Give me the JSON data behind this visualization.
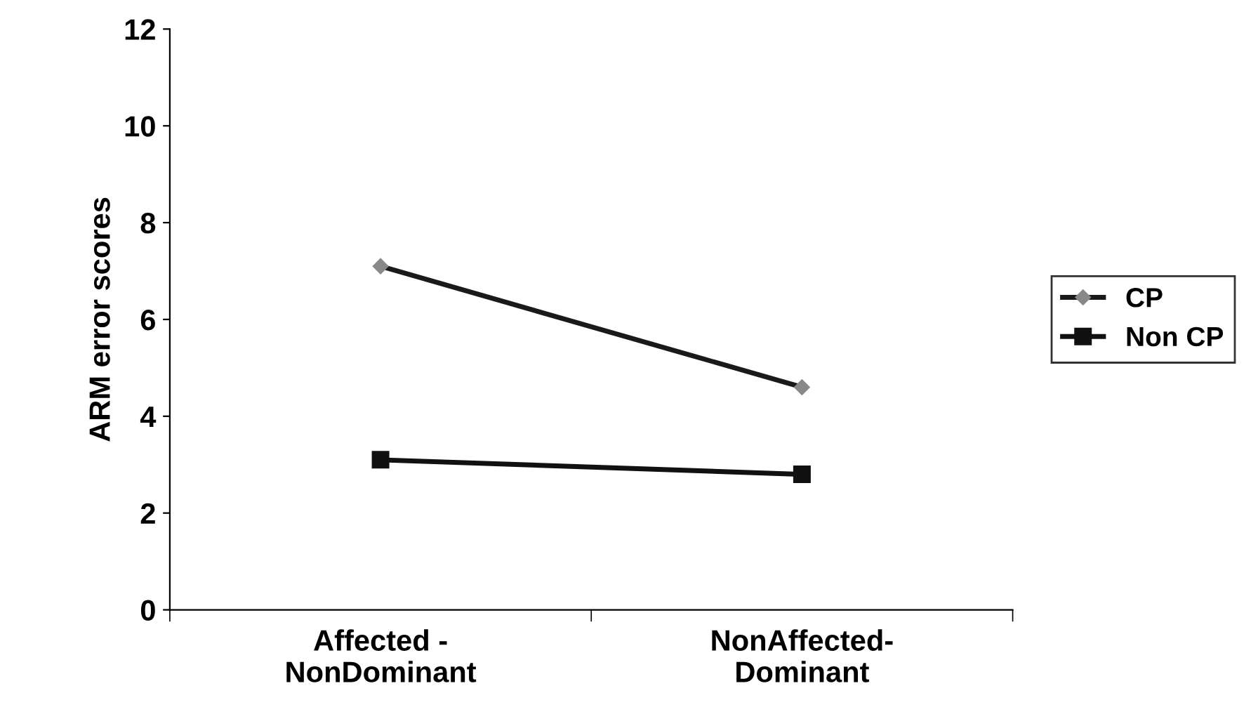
{
  "chart_data": {
    "type": "line",
    "ylabel": "ARM error scores",
    "categories": [
      "Affected -\nNonDominant",
      "NonAffected-\nDominant"
    ],
    "series": [
      {
        "name": "CP",
        "color": "#1a1a1a",
        "marker": "diamond",
        "values": [
          7.1,
          4.6
        ]
      },
      {
        "name": "Non CP",
        "color": "#111111",
        "marker": "square",
        "values": [
          3.1,
          2.8
        ]
      }
    ],
    "ylim": [
      0,
      12
    ],
    "yticks": [
      0,
      2,
      4,
      6,
      8,
      10,
      12
    ],
    "grid": false,
    "legend": "right",
    "line_style": "solid"
  }
}
